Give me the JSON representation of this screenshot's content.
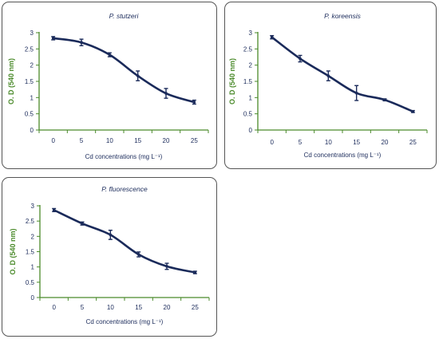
{
  "chart_data": [
    {
      "type": "line",
      "title": "P. stutzeri",
      "xlabel": "Cd concentrations  (mg L⁻¹)",
      "ylabel": "O. D (540 nm)",
      "x": [
        0,
        5,
        10,
        15,
        20,
        25
      ],
      "x_tick_labels": [
        "0",
        "5",
        "10",
        "15",
        "20",
        "25"
      ],
      "y_tick_labels": [
        "0",
        "0.5",
        "1",
        "1.5",
        "2",
        "2.5",
        "3"
      ],
      "ylim": [
        0,
        3
      ],
      "series": [
        {
          "values": [
            2.83,
            2.7,
            2.32,
            1.67,
            1.13,
            0.86
          ],
          "errors": [
            0.05,
            0.1,
            0.06,
            0.15,
            0.15,
            0.06
          ]
        }
      ]
    },
    {
      "type": "line",
      "title": "P. koreensis",
      "xlabel": "Cd concentrations  (mg L⁻¹)",
      "ylabel": "O. D (540 nm)",
      "x": [
        0,
        5,
        10,
        15,
        20,
        25
      ],
      "x_tick_labels": [
        "0",
        "5",
        "10",
        "15",
        "20",
        "25"
      ],
      "y_tick_labels": [
        "0",
        "0.5",
        "1",
        "1.5",
        "2",
        "2.5",
        "3"
      ],
      "ylim": [
        0,
        3
      ],
      "series": [
        {
          "values": [
            2.86,
            2.2,
            1.67,
            1.14,
            0.93,
            0.57
          ],
          "errors": [
            0.05,
            0.1,
            0.15,
            0.23,
            0.03,
            0.03
          ]
        }
      ]
    },
    {
      "type": "line",
      "title": "P. fluorescence",
      "xlabel": "Cd concentrations  (mg L⁻¹)",
      "ylabel": "O. D (540 nm)",
      "x": [
        0,
        5,
        10,
        15,
        20,
        25
      ],
      "x_tick_labels": [
        "0",
        "5",
        "10",
        "15",
        "20",
        "25"
      ],
      "y_tick_labels": [
        "0",
        "0.5",
        "1",
        "1.5",
        "2",
        "2.5",
        "3"
      ],
      "ylim": [
        0,
        3
      ],
      "series": [
        {
          "values": [
            2.86,
            2.42,
            2.05,
            1.41,
            1.02,
            0.82
          ],
          "errors": [
            0.05,
            0.05,
            0.15,
            0.08,
            0.1,
            0.04
          ]
        }
      ]
    }
  ],
  "colors": {
    "line": "#1a2a5a",
    "axis": "#4a8a2a",
    "tick_text": "#1a2a5a",
    "ylabel": "#4a8a2a",
    "xlabel": "#1a2a5a",
    "title": "#1a2a5a"
  }
}
